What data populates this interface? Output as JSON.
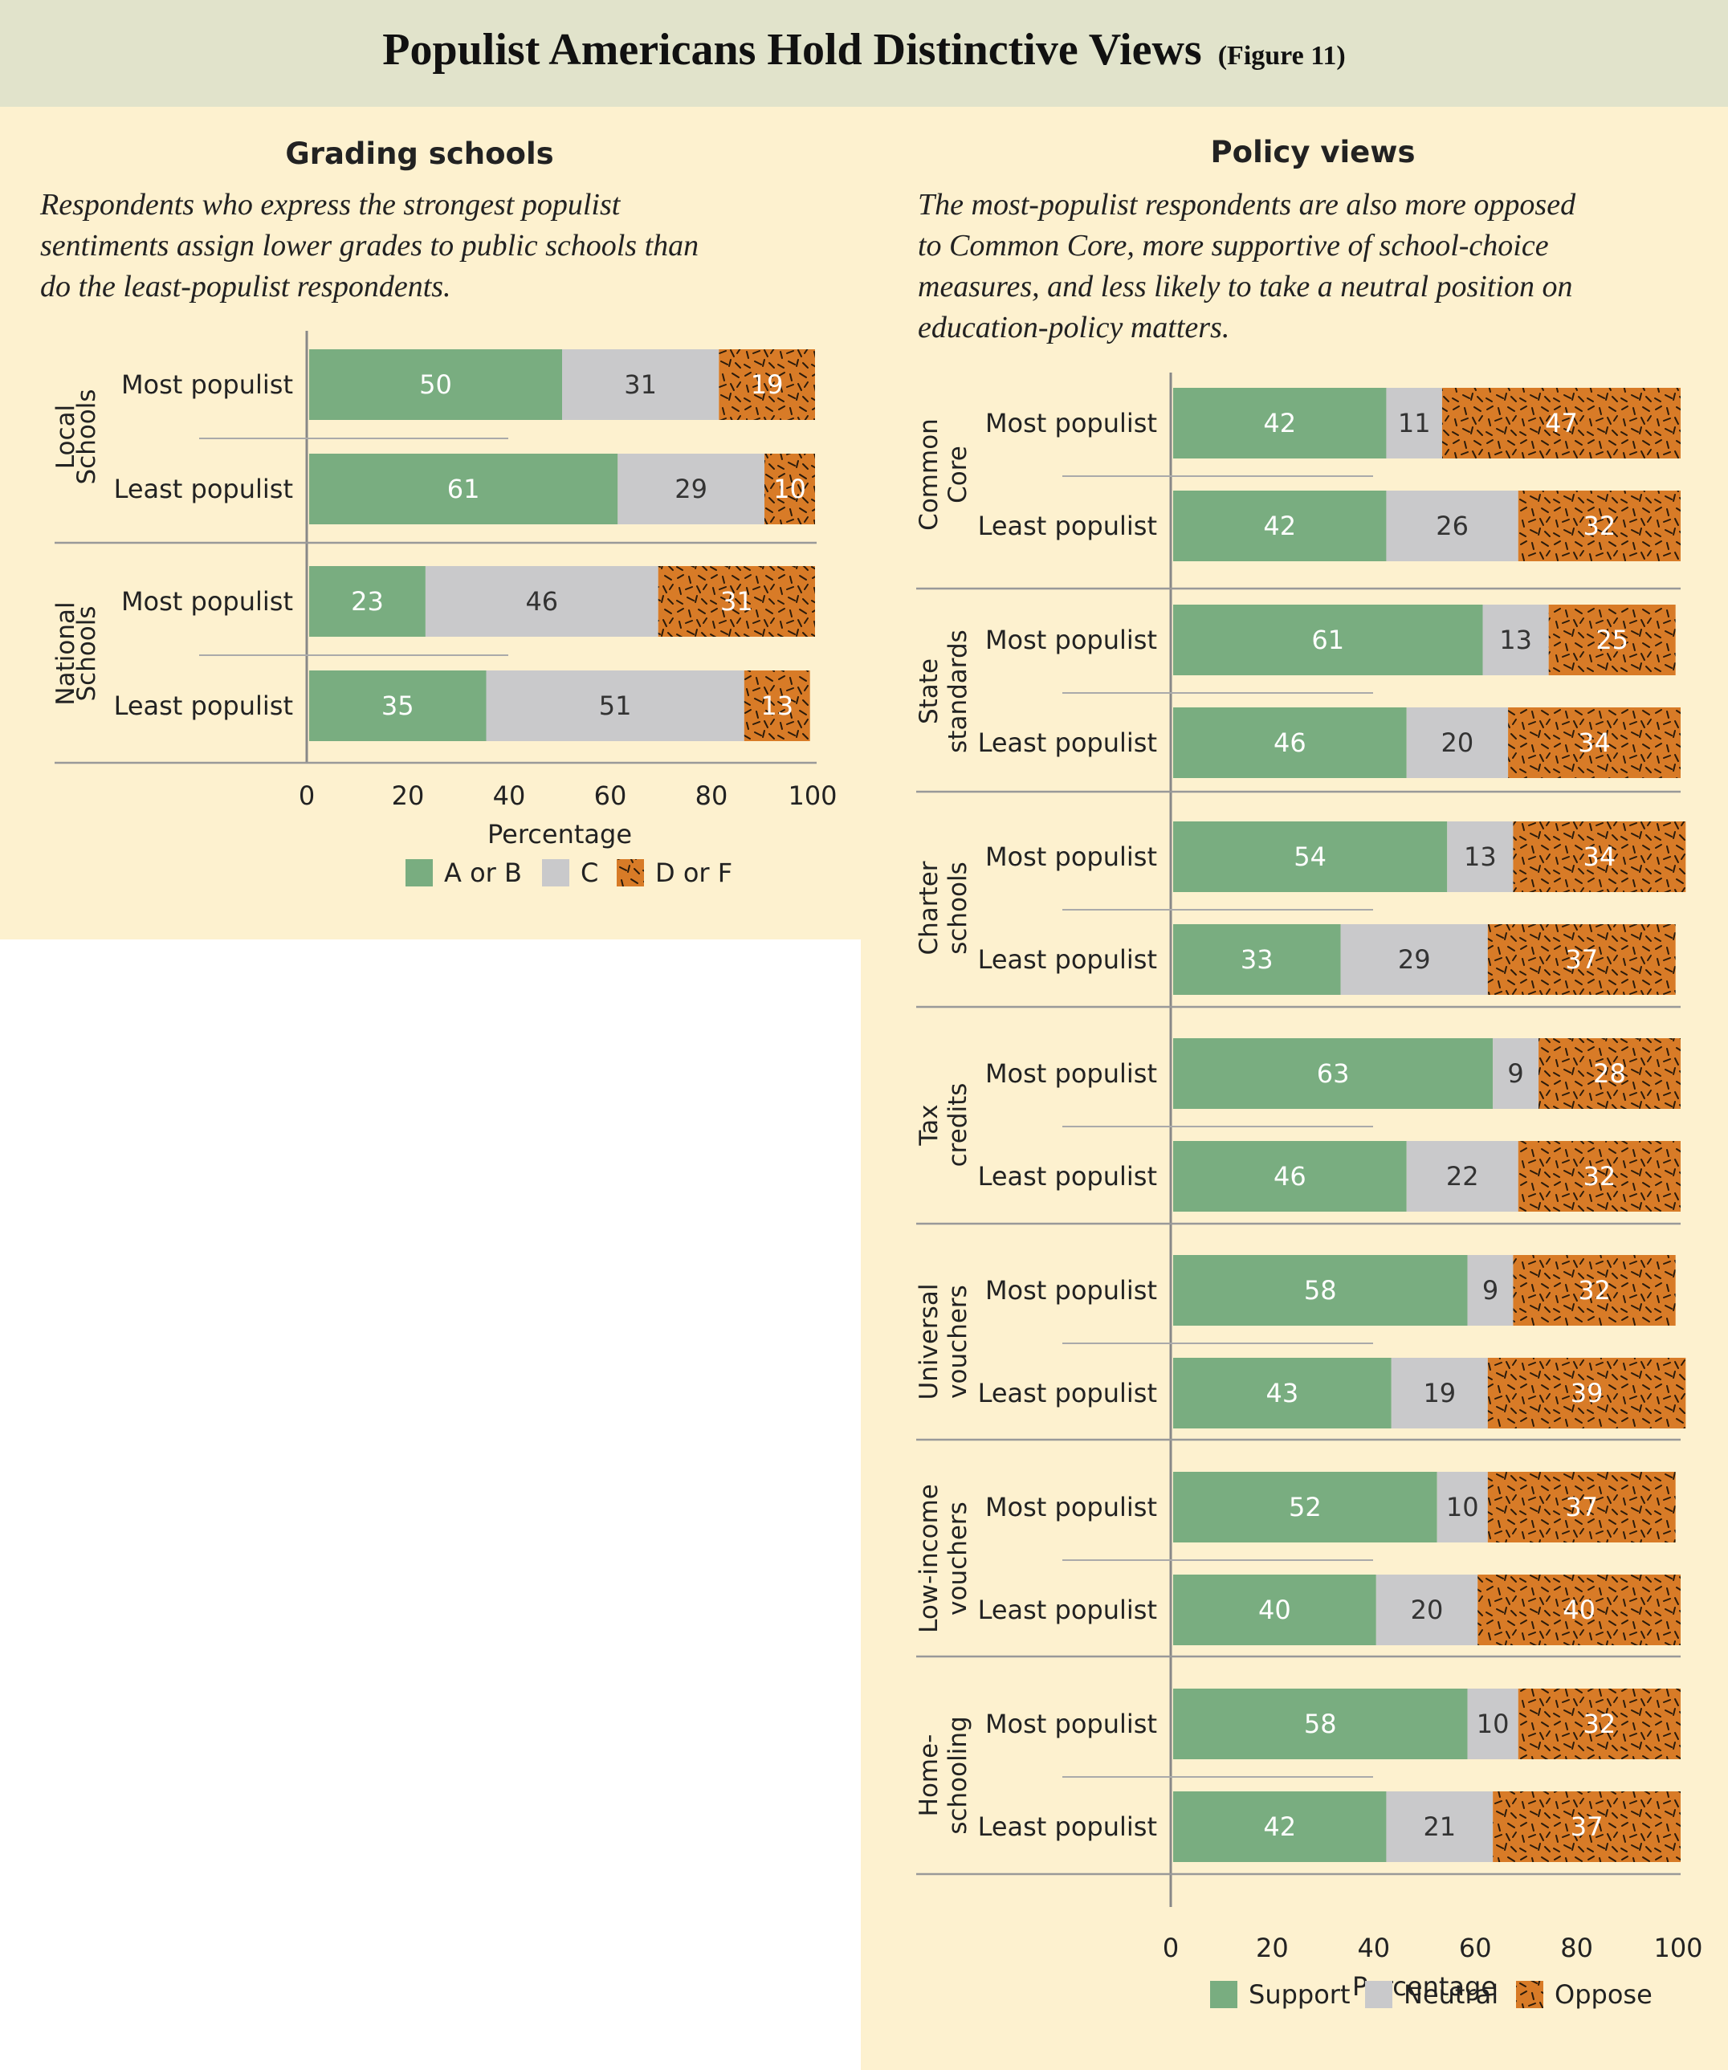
{
  "header": {
    "title": "Populist Americans Hold Distinctive Views",
    "figure_ref": "(Figure 11)"
  },
  "colors": {
    "header_bg": "#e1e3cb",
    "panel_bg": "#fdf1cf",
    "green": "#79ad80",
    "gray": "#c9c9cb",
    "orange": "#d87b27"
  },
  "left": {
    "title": "Grading schools",
    "subtitle": [
      "Respondents who express the strongest populist",
      "sentiments assign lower grades to public schools than",
      "do the least-populist respondents."
    ]
  },
  "right": {
    "title": "Policy views",
    "subtitle": [
      "The most-populist respondents are also more opposed",
      "to Common Core, more supportive of school-choice",
      "measures, and less likely to take a neutral position on",
      "education-policy matters."
    ]
  },
  "chart_data": [
    {
      "type": "bar",
      "stacked": true,
      "orientation": "horizontal",
      "title": "Grading schools",
      "xlabel": "Percentage",
      "xlim": [
        0,
        100
      ],
      "xticks": [
        "0",
        "20",
        "40",
        "60",
        "80",
        "100"
      ],
      "legend_position": "bottom",
      "legend": [
        {
          "name": "A or B",
          "color": "#79ad80"
        },
        {
          "name": "C",
          "color": "#c9c9cb"
        },
        {
          "name": "D or F",
          "color": "#d87b27",
          "hatched": true
        }
      ],
      "groups": [
        {
          "label": [
            "Local",
            "Schools"
          ],
          "rows": [
            {
              "label": "Most populist",
              "values": [
                50,
                31,
                19
              ]
            },
            {
              "label": "Least populist",
              "values": [
                61,
                29,
                10
              ]
            }
          ]
        },
        {
          "label": [
            "National",
            "Schools"
          ],
          "rows": [
            {
              "label": "Most populist",
              "values": [
                23,
                46,
                31
              ]
            },
            {
              "label": "Least populist",
              "values": [
                35,
                51,
                13
              ]
            }
          ]
        }
      ]
    },
    {
      "type": "bar",
      "stacked": true,
      "orientation": "horizontal",
      "title": "Policy views",
      "xlabel": "Percentage",
      "xlim": [
        0,
        100
      ],
      "xticks": [
        "0",
        "20",
        "40",
        "60",
        "80",
        "100"
      ],
      "legend_position": "bottom",
      "legend": [
        {
          "name": "Support",
          "color": "#79ad80"
        },
        {
          "name": "Neutral",
          "color": "#c9c9cb"
        },
        {
          "name": "Oppose",
          "color": "#d87b27",
          "hatched": true
        }
      ],
      "groups": [
        {
          "label": [
            "Common",
            "Core"
          ],
          "rows": [
            {
              "label": "Most populist",
              "values": [
                42,
                11,
                47
              ]
            },
            {
              "label": "Least populist",
              "values": [
                42,
                26,
                32
              ]
            }
          ]
        },
        {
          "label": [
            "State",
            "standards"
          ],
          "rows": [
            {
              "label": "Most populist",
              "values": [
                61,
                13,
                25
              ]
            },
            {
              "label": "Least populist",
              "values": [
                46,
                20,
                34
              ]
            }
          ]
        },
        {
          "label": [
            "Charter",
            "schools"
          ],
          "rows": [
            {
              "label": "Most populist",
              "values": [
                54,
                13,
                34
              ]
            },
            {
              "label": "Least populist",
              "values": [
                33,
                29,
                37
              ]
            }
          ]
        },
        {
          "label": [
            "Tax",
            "credits"
          ],
          "rows": [
            {
              "label": "Most populist",
              "values": [
                63,
                9,
                28
              ]
            },
            {
              "label": "Least populist",
              "values": [
                46,
                22,
                32
              ]
            }
          ]
        },
        {
          "label": [
            "Universal",
            "vouchers"
          ],
          "rows": [
            {
              "label": "Most populist",
              "values": [
                58,
                9,
                32
              ]
            },
            {
              "label": "Least populist",
              "values": [
                43,
                19,
                39
              ]
            }
          ]
        },
        {
          "label": [
            "Low-income",
            "vouchers"
          ],
          "rows": [
            {
              "label": "Most populist",
              "values": [
                52,
                10,
                37
              ]
            },
            {
              "label": "Least populist",
              "values": [
                40,
                20,
                40
              ]
            }
          ]
        },
        {
          "label": [
            "Home-",
            "schooling"
          ],
          "rows": [
            {
              "label": "Most populist",
              "values": [
                58,
                10,
                32
              ]
            },
            {
              "label": "Least populist",
              "values": [
                42,
                21,
                37
              ]
            }
          ]
        }
      ]
    }
  ]
}
